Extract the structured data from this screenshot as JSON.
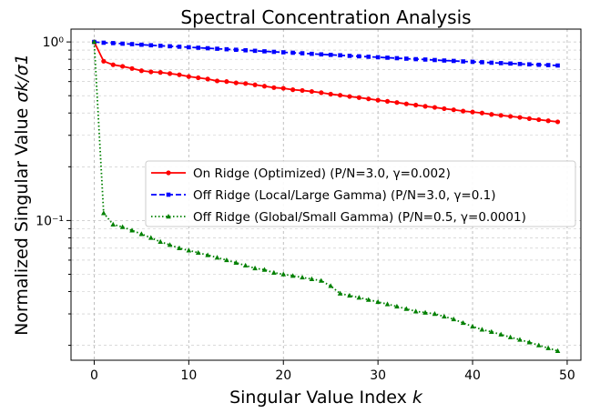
{
  "chart_data": {
    "type": "line",
    "title": "Spectral Concentration Analysis",
    "xlabel": "Singular Value Index",
    "xlabel_var": "k",
    "ylabel": "Normalized Singular Value",
    "ylabel_var": "σk/σ1",
    "yscale": "log",
    "xlim": [
      -2.45,
      51.45
    ],
    "ylim": [
      0.0165,
      1.18
    ],
    "x_ticks": [
      0,
      10,
      20,
      30,
      40,
      50
    ],
    "y_tick_labels": {
      "major_1": "10⁰",
      "major_01": "10⁻¹"
    },
    "grid": true,
    "legend_position": "center-right",
    "series": [
      {
        "name": "On Ridge (Optimized) (P/N=3.0, γ=0.002)",
        "color": "#ff0000",
        "linestyle": "solid",
        "marker": "circle",
        "x": [
          0,
          1,
          2,
          3,
          4,
          5,
          6,
          7,
          8,
          9,
          10,
          11,
          12,
          13,
          14,
          15,
          16,
          17,
          18,
          19,
          20,
          21,
          22,
          23,
          24,
          25,
          26,
          27,
          28,
          29,
          30,
          31,
          32,
          33,
          34,
          35,
          36,
          37,
          38,
          39,
          40,
          41,
          42,
          43,
          44,
          45,
          46,
          47,
          48,
          49
        ],
        "values": [
          1.0,
          0.78,
          0.745,
          0.73,
          0.71,
          0.69,
          0.68,
          0.675,
          0.665,
          0.655,
          0.64,
          0.63,
          0.62,
          0.605,
          0.6,
          0.59,
          0.585,
          0.575,
          0.565,
          0.555,
          0.55,
          0.54,
          0.535,
          0.528,
          0.52,
          0.51,
          0.503,
          0.495,
          0.488,
          0.48,
          0.472,
          0.465,
          0.458,
          0.45,
          0.443,
          0.436,
          0.43,
          0.423,
          0.417,
          0.41,
          0.405,
          0.4,
          0.393,
          0.388,
          0.383,
          0.378,
          0.372,
          0.367,
          0.362,
          0.357
        ]
      },
      {
        "name": "Off Ridge (Local/Large Gamma) (P/N=3.0, γ=0.1)",
        "color": "#0000ff",
        "linestyle": "dashed",
        "marker": "square",
        "x": [
          0,
          1,
          2,
          3,
          4,
          5,
          6,
          7,
          8,
          9,
          10,
          11,
          12,
          13,
          14,
          15,
          16,
          17,
          18,
          19,
          20,
          21,
          22,
          23,
          24,
          25,
          26,
          27,
          28,
          29,
          30,
          31,
          32,
          33,
          34,
          35,
          36,
          37,
          38,
          39,
          40,
          41,
          42,
          43,
          44,
          45,
          46,
          47,
          48,
          49
        ],
        "values": [
          1.0,
          0.99,
          0.985,
          0.978,
          0.972,
          0.965,
          0.958,
          0.952,
          0.946,
          0.94,
          0.934,
          0.928,
          0.922,
          0.916,
          0.91,
          0.904,
          0.898,
          0.892,
          0.886,
          0.88,
          0.875,
          0.87,
          0.864,
          0.858,
          0.852,
          0.847,
          0.842,
          0.836,
          0.831,
          0.826,
          0.821,
          0.816,
          0.811,
          0.806,
          0.801,
          0.797,
          0.792,
          0.787,
          0.783,
          0.778,
          0.774,
          0.77,
          0.765,
          0.761,
          0.757,
          0.753,
          0.749,
          0.745,
          0.742,
          0.738
        ]
      },
      {
        "name": "Off Ridge (Global/Small Gamma) (P/N=0.5, γ=0.0001)",
        "color": "#008000",
        "linestyle": "dotted",
        "marker": "triangle",
        "x": [
          0,
          1,
          2,
          3,
          4,
          5,
          6,
          7,
          8,
          9,
          10,
          11,
          12,
          13,
          14,
          15,
          16,
          17,
          18,
          19,
          20,
          21,
          22,
          23,
          24,
          25,
          26,
          27,
          28,
          29,
          30,
          31,
          32,
          33,
          34,
          35,
          36,
          37,
          38,
          39,
          40,
          41,
          42,
          43,
          44,
          45,
          46,
          47,
          48,
          49
        ],
        "values": [
          1.0,
          0.11,
          0.095,
          0.092,
          0.088,
          0.084,
          0.08,
          0.076,
          0.073,
          0.07,
          0.068,
          0.066,
          0.064,
          0.062,
          0.06,
          0.058,
          0.056,
          0.054,
          0.053,
          0.051,
          0.05,
          0.049,
          0.048,
          0.047,
          0.046,
          0.043,
          0.039,
          0.038,
          0.037,
          0.036,
          0.035,
          0.034,
          0.033,
          0.032,
          0.031,
          0.0305,
          0.03,
          0.029,
          0.028,
          0.0267,
          0.0255,
          0.0245,
          0.0238,
          0.023,
          0.0222,
          0.0215,
          0.0208,
          0.02,
          0.0193,
          0.0186
        ]
      }
    ]
  }
}
